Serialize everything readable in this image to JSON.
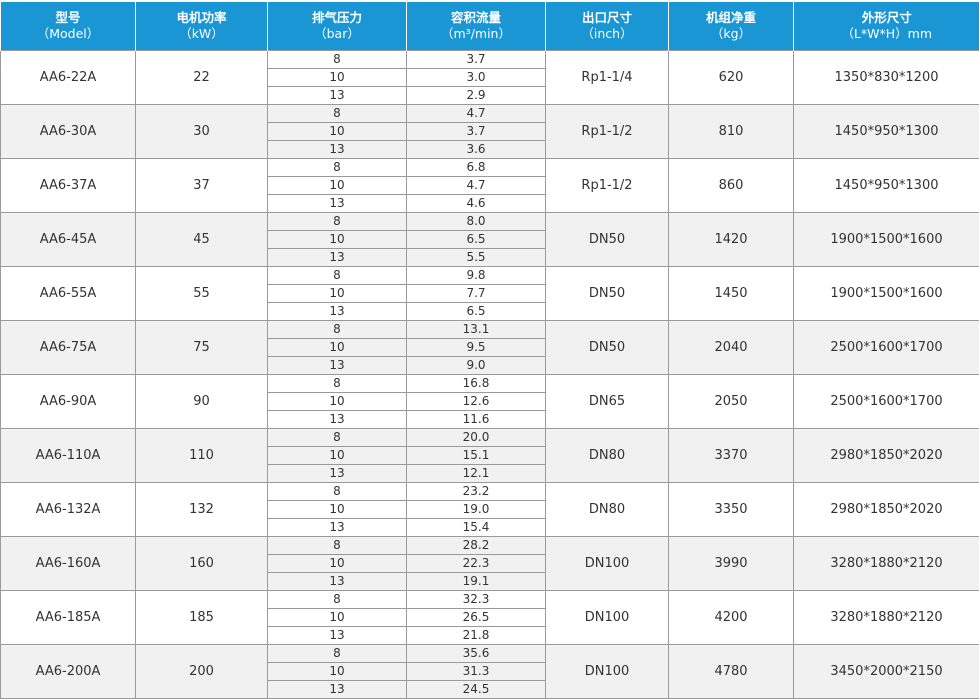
{
  "header": [
    {
      "title": "型号",
      "unit": "（Model）"
    },
    {
      "title": "电机功率",
      "unit": "（kW）"
    },
    {
      "title": "排气压力",
      "unit": "（bar）"
    },
    {
      "title": "容积流量",
      "unit": "（m³/min）"
    },
    {
      "title": "出口尺寸",
      "unit": "（inch）"
    },
    {
      "title": "机组净重",
      "unit": "（kg）"
    },
    {
      "title": "外形尺寸",
      "unit": "（L*W*H）mm"
    }
  ],
  "colors": {
    "header_bg": "#1a96d4",
    "alt_row": "#f1f1f1"
  },
  "rows": [
    {
      "model": "AA6-22A",
      "power": "22",
      "pressures": [
        "8",
        "10",
        "13"
      ],
      "flows": [
        "3.7",
        "3.0",
        "2.9"
      ],
      "outlet": "Rp1-1/4",
      "weight": "620",
      "dims": "1350*830*1200"
    },
    {
      "model": "AA6-30A",
      "power": "30",
      "pressures": [
        "8",
        "10",
        "13"
      ],
      "flows": [
        "4.7",
        "3.7",
        "3.6"
      ],
      "outlet": "Rp1-1/2",
      "weight": "810",
      "dims": "1450*950*1300"
    },
    {
      "model": "AA6-37A",
      "power": "37",
      "pressures": [
        "8",
        "10",
        "13"
      ],
      "flows": [
        "6.8",
        "4.7",
        "4.6"
      ],
      "outlet": "Rp1-1/2",
      "weight": "860",
      "dims": "1450*950*1300"
    },
    {
      "model": "AA6-45A",
      "power": "45",
      "pressures": [
        "8",
        "10",
        "13"
      ],
      "flows": [
        "8.0",
        "6.5",
        "5.5"
      ],
      "outlet": "DN50",
      "weight": "1420",
      "dims": "1900*1500*1600"
    },
    {
      "model": "AA6-55A",
      "power": "55",
      "pressures": [
        "8",
        "10",
        "13"
      ],
      "flows": [
        "9.8",
        "7.7",
        "6.5"
      ],
      "outlet": "DN50",
      "weight": "1450",
      "dims": "1900*1500*1600"
    },
    {
      "model": "AA6-75A",
      "power": "75",
      "pressures": [
        "8",
        "10",
        "13"
      ],
      "flows": [
        "13.1",
        "9.5",
        "9.0"
      ],
      "outlet": "DN50",
      "weight": "2040",
      "dims": "2500*1600*1700"
    },
    {
      "model": "AA6-90A",
      "power": "90",
      "pressures": [
        "8",
        "10",
        "13"
      ],
      "flows": [
        "16.8",
        "12.6",
        "11.6"
      ],
      "outlet": "DN65",
      "weight": "2050",
      "dims": "2500*1600*1700"
    },
    {
      "model": "AA6-110A",
      "power": "110",
      "pressures": [
        "8",
        "10",
        "13"
      ],
      "flows": [
        "20.0",
        "15.1",
        "12.1"
      ],
      "outlet": "DN80",
      "weight": "3370",
      "dims": "2980*1850*2020"
    },
    {
      "model": "AA6-132A",
      "power": "132",
      "pressures": [
        "8",
        "10",
        "13"
      ],
      "flows": [
        "23.2",
        "19.0",
        "15.4"
      ],
      "outlet": "DN80",
      "weight": "3350",
      "dims": "2980*1850*2020"
    },
    {
      "model": "AA6-160A",
      "power": "160",
      "pressures": [
        "8",
        "10",
        "13"
      ],
      "flows": [
        "28.2",
        "22.3",
        "19.1"
      ],
      "outlet": "DN100",
      "weight": "3990",
      "dims": "3280*1880*2120"
    },
    {
      "model": "AA6-185A",
      "power": "185",
      "pressures": [
        "8",
        "10",
        "13"
      ],
      "flows": [
        "32.3",
        "26.5",
        "21.8"
      ],
      "outlet": "DN100",
      "weight": "4200",
      "dims": "3280*1880*2120"
    },
    {
      "model": "AA6-200A",
      "power": "200",
      "pressures": [
        "8",
        "10",
        "13"
      ],
      "flows": [
        "35.6",
        "31.3",
        "24.5"
      ],
      "outlet": "DN100",
      "weight": "4780",
      "dims": "3450*2000*2150"
    }
  ]
}
